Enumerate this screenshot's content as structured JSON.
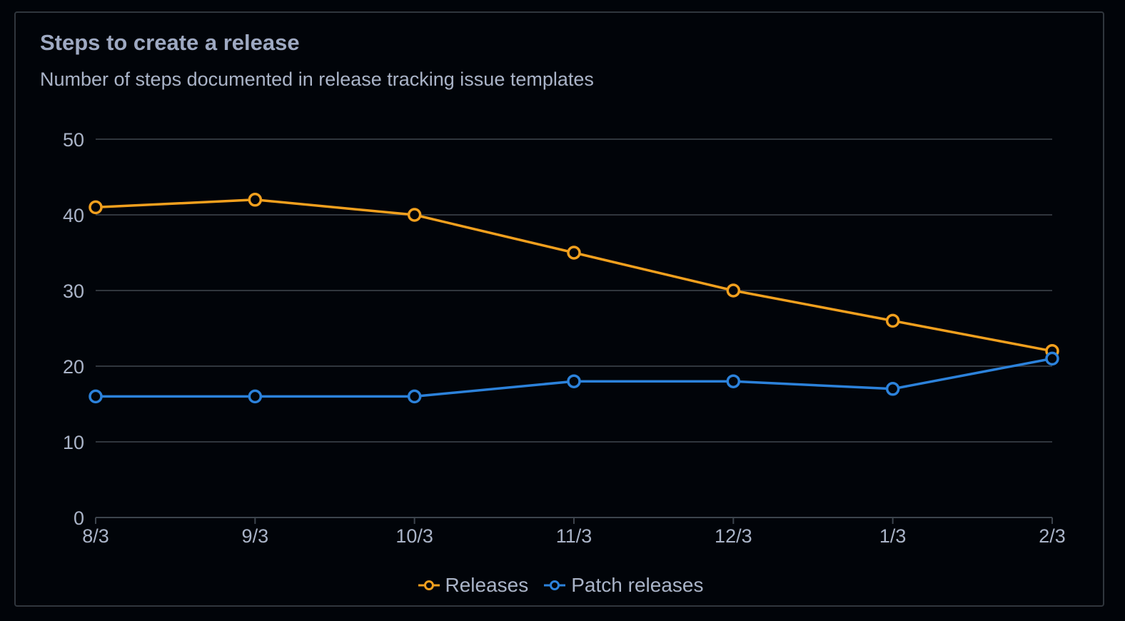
{
  "chart_data": {
    "type": "line",
    "title": "Steps to create a release",
    "subtitle": "Number of steps documented in release tracking issue templates",
    "categories": [
      "8/3",
      "9/3",
      "10/3",
      "11/3",
      "12/3",
      "1/3",
      "2/3"
    ],
    "ylim": [
      0,
      50
    ],
    "yticks": [
      0,
      10,
      20,
      30,
      40,
      50
    ],
    "grid": true,
    "legend_position": "bottom-center",
    "series": [
      {
        "name": "Releases",
        "color": "#f2a01e",
        "values": [
          41,
          42,
          40,
          35,
          30,
          26,
          22
        ]
      },
      {
        "name": "Patch releases",
        "color": "#2c82db",
        "values": [
          16,
          16,
          16,
          18,
          18,
          17,
          21
        ]
      }
    ]
  }
}
